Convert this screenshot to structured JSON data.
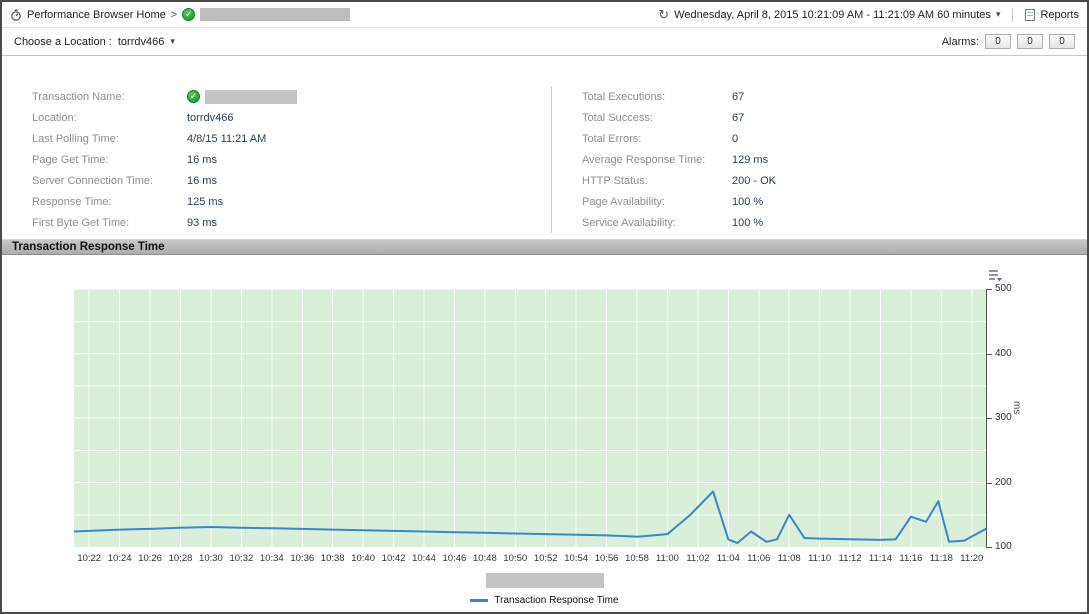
{
  "header": {
    "breadcrumb": "Performance Browser Home",
    "crumb_separator": ">",
    "time_range": "Wednesday, April 8, 2015 10:21:09 AM - 11:21:09 AM 60 minutes",
    "reports_label": "Reports"
  },
  "toolbar": {
    "choose_location_label": "Choose a Location :",
    "location_value": "torrdv466",
    "alarms_label": "Alarms:",
    "alarm_counts": [
      "0",
      "0",
      "0"
    ]
  },
  "details": {
    "left": [
      {
        "label": "Transaction Name:",
        "value": ""
      },
      {
        "label": "Location:",
        "value": "torrdv466"
      },
      {
        "label": "Last Polling Time:",
        "value": "4/8/15 11:21 AM"
      },
      {
        "label": "Page Get Time:",
        "value": "16 ms"
      },
      {
        "label": "Server Connection Time:",
        "value": "16 ms"
      },
      {
        "label": "Response Time:",
        "value": "125 ms"
      },
      {
        "label": "First Byte Get Time:",
        "value": "93 ms"
      }
    ],
    "right": [
      {
        "label": "Total Executions:",
        "value": "67"
      },
      {
        "label": "Total Success:",
        "value": "67"
      },
      {
        "label": "Total Errors:",
        "value": "0"
      },
      {
        "label": "Average Response Time:",
        "value": "129 ms"
      },
      {
        "label": "HTTP Status:",
        "value": "200 - OK"
      },
      {
        "label": "Page Availability:",
        "value": "100 %"
      },
      {
        "label": "Service Availability:",
        "value": "100 %"
      }
    ]
  },
  "section": {
    "title": "Transaction Response Time"
  },
  "chart_data": {
    "type": "line",
    "title": "Transaction Response Time",
    "ylabel": "ms",
    "ylim": [
      100,
      500
    ],
    "xlim": [
      0,
      60
    ],
    "yticks": [
      100,
      200,
      300,
      400,
      500
    ],
    "grid": true,
    "plot_background": "#d9efd9",
    "x_tick_minutes": [
      1,
      3,
      5,
      7,
      9,
      11,
      13,
      15,
      17,
      19,
      21,
      23,
      25,
      27,
      29,
      31,
      33,
      35,
      37,
      39,
      41,
      43,
      45,
      47,
      49,
      51,
      53,
      55,
      57,
      59
    ],
    "x_tick_labels": [
      "10:22",
      "10:24",
      "10:26",
      "10:28",
      "10:30",
      "10:32",
      "10:34",
      "10:36",
      "10:38",
      "10:40",
      "10:42",
      "10:44",
      "10:46",
      "10:48",
      "10:50",
      "10:52",
      "10:54",
      "10:56",
      "10:58",
      "11:00",
      "11:02",
      "11:04",
      "11:06",
      "11:08",
      "11:10",
      "11:12",
      "11:14",
      "11:16",
      "11:18",
      "11:20"
    ],
    "series": [
      {
        "name": "Transaction Response Time",
        "color": "#3a87c8",
        "x": [
          0,
          1,
          3,
          5,
          7,
          9,
          11,
          13,
          15,
          17,
          19,
          21,
          23,
          25,
          27,
          29,
          31,
          33,
          35,
          37,
          39,
          40.5,
          42,
          43,
          43.6,
          44.5,
          45.5,
          46.2,
          47,
          48,
          49,
          51,
          53,
          54,
          55,
          56,
          56.8,
          57.5,
          58.5,
          60
        ],
        "y": [
          124,
          125,
          127,
          128,
          130,
          131,
          130,
          129,
          128,
          127,
          126,
          125,
          124,
          123,
          122,
          121,
          120,
          119,
          118,
          116,
          120,
          150,
          186,
          112,
          106,
          124,
          108,
          112,
          150,
          114,
          113,
          112,
          111,
          112,
          147,
          139,
          171,
          108,
          110,
          129
        ]
      }
    ],
    "legend_label": "Transaction Response Time",
    "legend_position": "bottom-center"
  }
}
